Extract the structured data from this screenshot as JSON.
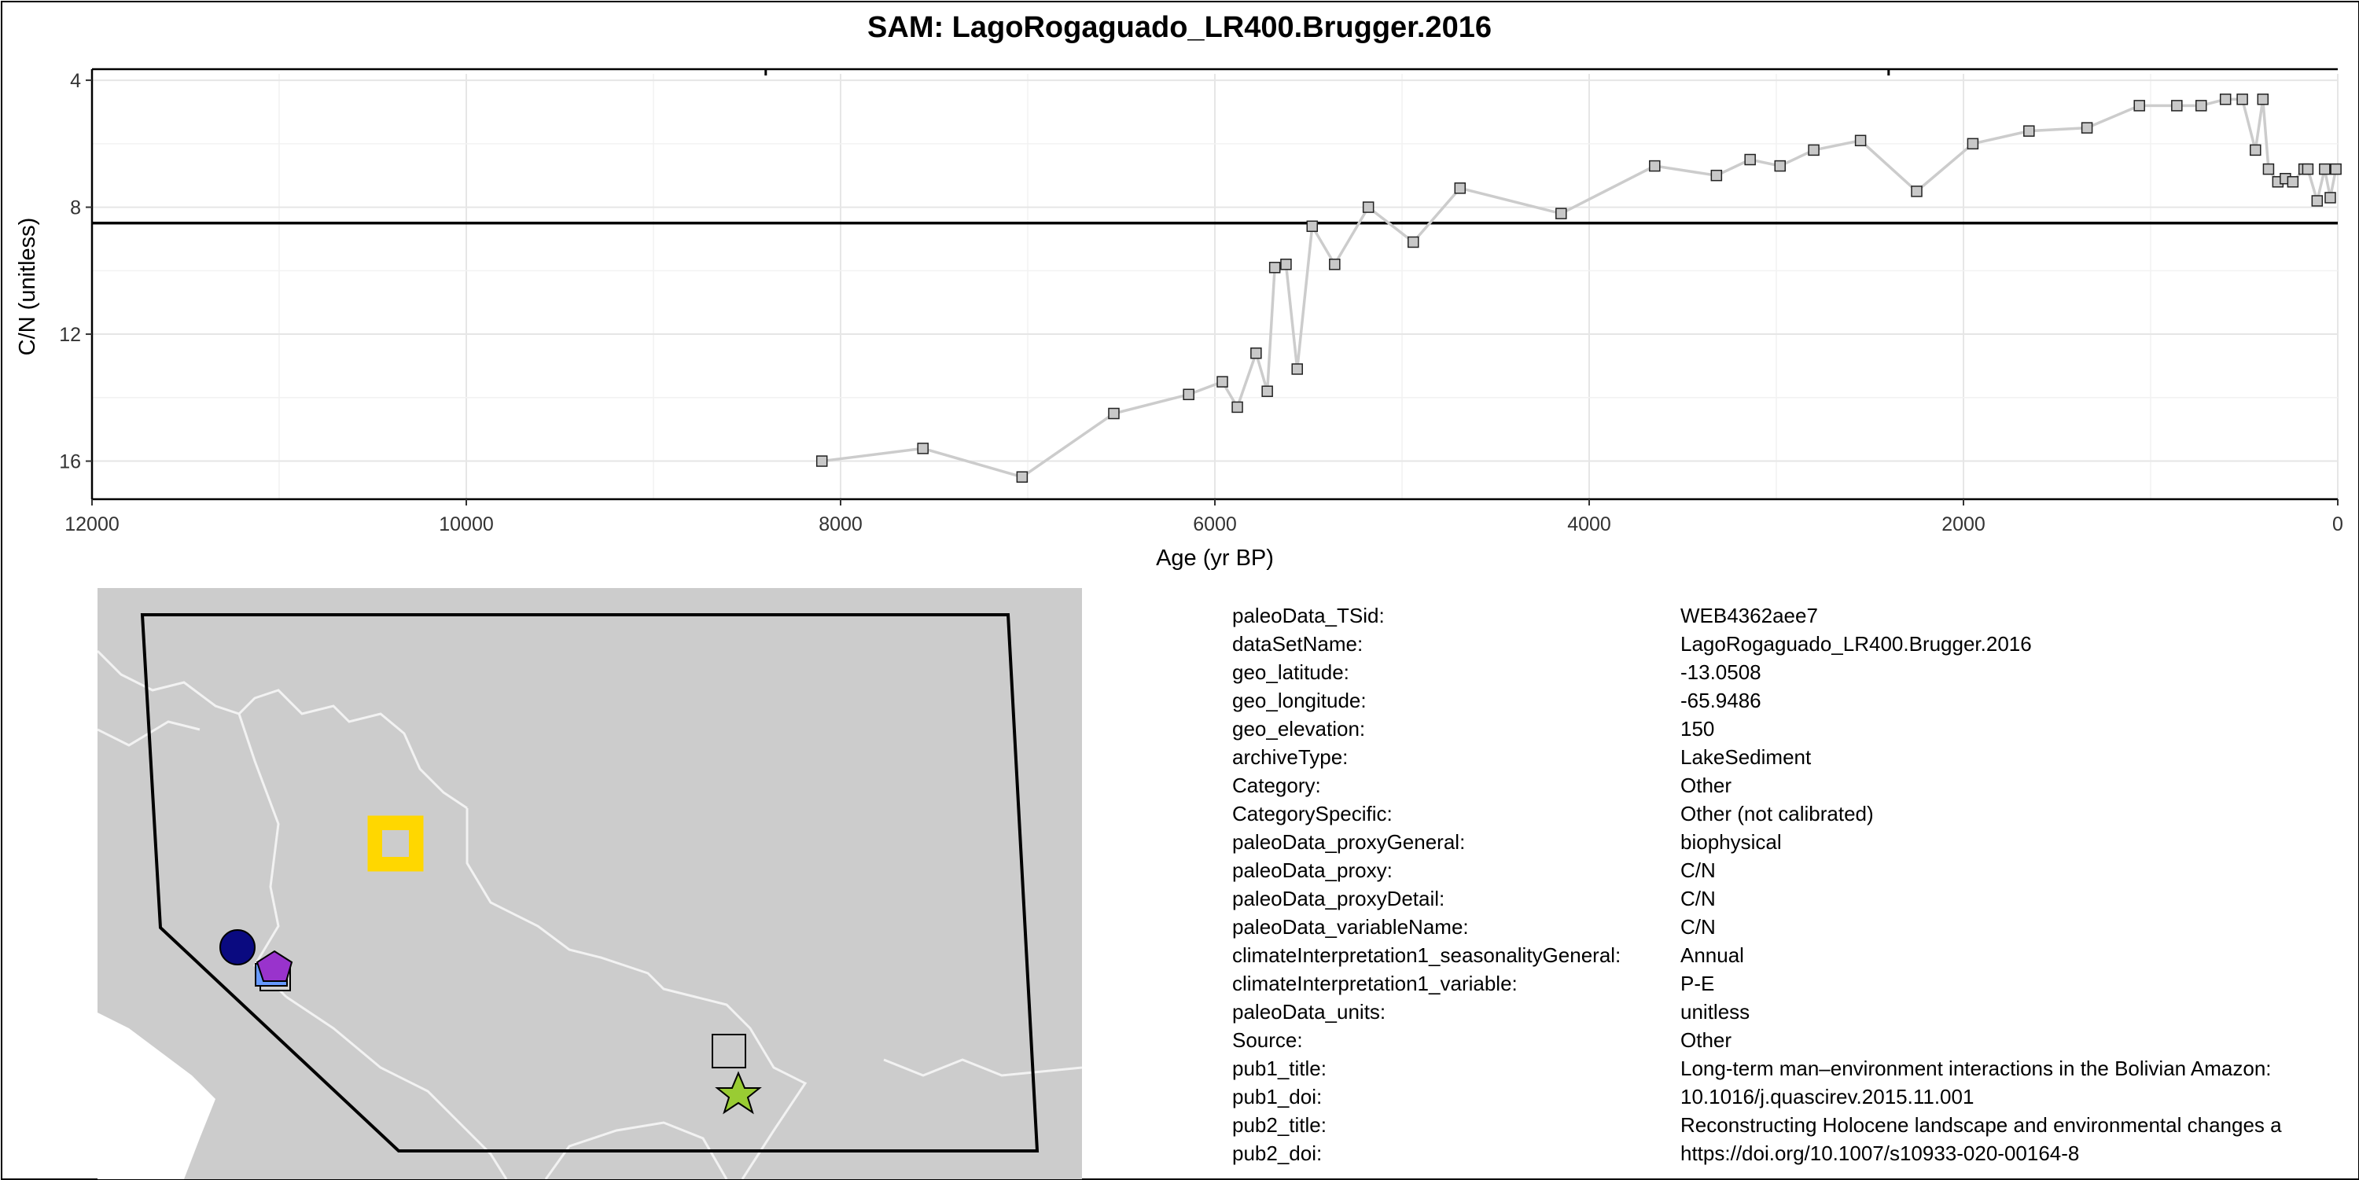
{
  "title": "SAM: LagoRogaguado_LR400.Brugger.2016",
  "chart_data": {
    "type": "line",
    "xlabel": "Age (yr BP)",
    "ylabel": "C/N (unitless)",
    "x_reversed": true,
    "y_reversed": true,
    "xlim": [
      12000,
      0
    ],
    "ylim": [
      17.2,
      3.8
    ],
    "x_ticks": [
      12000,
      10000,
      8000,
      6000,
      4000,
      2000,
      0
    ],
    "y_ticks": [
      4,
      8,
      12,
      16
    ],
    "grid": true,
    "reference_line_y": 8.5,
    "series": [
      {
        "x": [
          8100,
          7560,
          7030,
          6540,
          6140,
          5960,
          5880,
          5780,
          5720,
          5680,
          5620,
          5560,
          5480,
          5360,
          5180,
          4940,
          4690,
          4150,
          3650,
          3320,
          3140,
          2980,
          2800,
          2550,
          2250,
          1950,
          1650,
          1340,
          1060,
          860,
          730,
          600,
          510,
          440,
          400,
          370,
          320,
          280,
          240,
          180,
          160,
          110,
          70,
          40,
          10
        ],
        "y": [
          16.0,
          15.6,
          16.5,
          14.5,
          13.9,
          13.5,
          14.3,
          12.6,
          13.8,
          9.9,
          9.8,
          13.1,
          8.6,
          9.8,
          8.0,
          9.1,
          7.4,
          8.2,
          6.7,
          7.0,
          6.5,
          6.7,
          6.2,
          5.9,
          7.5,
          6.0,
          5.6,
          5.5,
          4.8,
          4.8,
          4.8,
          4.6,
          4.6,
          6.2,
          4.6,
          6.8,
          7.2,
          7.1,
          7.2,
          6.8,
          6.8,
          7.8,
          6.8,
          7.7,
          6.8
        ]
      }
    ]
  },
  "map": {
    "ocean_color": "#ffffff",
    "land_color": "#cccccc",
    "markers": [
      {
        "shape": "square-ring",
        "color": "#FFD700"
      },
      {
        "shape": "circle",
        "color": "#0a0a80"
      },
      {
        "shape": "square",
        "color": "#6699ff"
      },
      {
        "shape": "pentagon",
        "color": "#9933cc"
      },
      {
        "shape": "star",
        "color": "#99cc33"
      },
      {
        "shape": "square",
        "color": "#cccccc"
      }
    ]
  },
  "info": [
    {
      "key": "paleoData_TSid:",
      "value": "WEB4362aee7"
    },
    {
      "key": "dataSetName:",
      "value": "LagoRogaguado_LR400.Brugger.2016"
    },
    {
      "key": "geo_latitude:",
      "value": "-13.0508"
    },
    {
      "key": "geo_longitude:",
      "value": "-65.9486"
    },
    {
      "key": "geo_elevation:",
      "value": "150"
    },
    {
      "key": "archiveType:",
      "value": "LakeSediment"
    },
    {
      "key": "Category:",
      "value": "Other"
    },
    {
      "key": "CategorySpecific:",
      "value": "Other (not calibrated)"
    },
    {
      "key": "paleoData_proxyGeneral:",
      "value": "biophysical"
    },
    {
      "key": "paleoData_proxy:",
      "value": "C/N"
    },
    {
      "key": "paleoData_proxyDetail:",
      "value": "C/N"
    },
    {
      "key": "paleoData_variableName:",
      "value": "C/N"
    },
    {
      "key": "climateInterpretation1_seasonalityGeneral:",
      "value": "Annual"
    },
    {
      "key": "climateInterpretation1_variable:",
      "value": "P-E"
    },
    {
      "key": "paleoData_units:",
      "value": "unitless"
    },
    {
      "key": "Source:",
      "value": "Other"
    },
    {
      "key": "pub1_title:",
      "value": "Long-term man–environment interactions in the Bolivian Amazon:"
    },
    {
      "key": "pub1_doi:",
      "value": "10.1016/j.quascirev.2015.11.001"
    },
    {
      "key": "pub2_title:",
      "value": "Reconstructing Holocene landscape and environmental changes a"
    },
    {
      "key": "pub2_doi:",
      "value": "https://doi.org/10.1007/s10933-020-00164-8"
    }
  ]
}
